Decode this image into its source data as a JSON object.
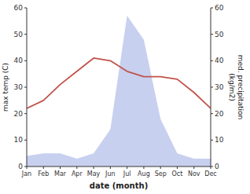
{
  "chart_data": {
    "type": "line",
    "x_label": "date (month)",
    "y_label": "max temp (C)",
    "y2_label": "med. precipitation\n(kg/m2)",
    "categories": [
      "Jan",
      "Feb",
      "Mar",
      "Apr",
      "May",
      "Jun",
      "Jul",
      "Aug",
      "Sep",
      "Oct",
      "Nov",
      "Dec"
    ],
    "series": [
      {
        "type": "area",
        "axis": "y2",
        "color": "#c8d0f0",
        "values": [
          4,
          5,
          5,
          3,
          5,
          14,
          57,
          48,
          18,
          5,
          3,
          3
        ]
      },
      {
        "type": "line",
        "color": "#c0534a",
        "values": [
          22,
          25,
          31,
          36,
          41,
          40,
          36,
          34,
          34,
          33,
          28,
          22
        ]
      }
    ],
    "ylim": [
      0,
      60
    ],
    "yticks": [
      0,
      10,
      20,
      30,
      40,
      50,
      60
    ],
    "y2lim": [
      0,
      60
    ],
    "y2ticks": [
      0,
      10,
      20,
      30,
      40,
      50,
      60
    ],
    "grid": false
  }
}
